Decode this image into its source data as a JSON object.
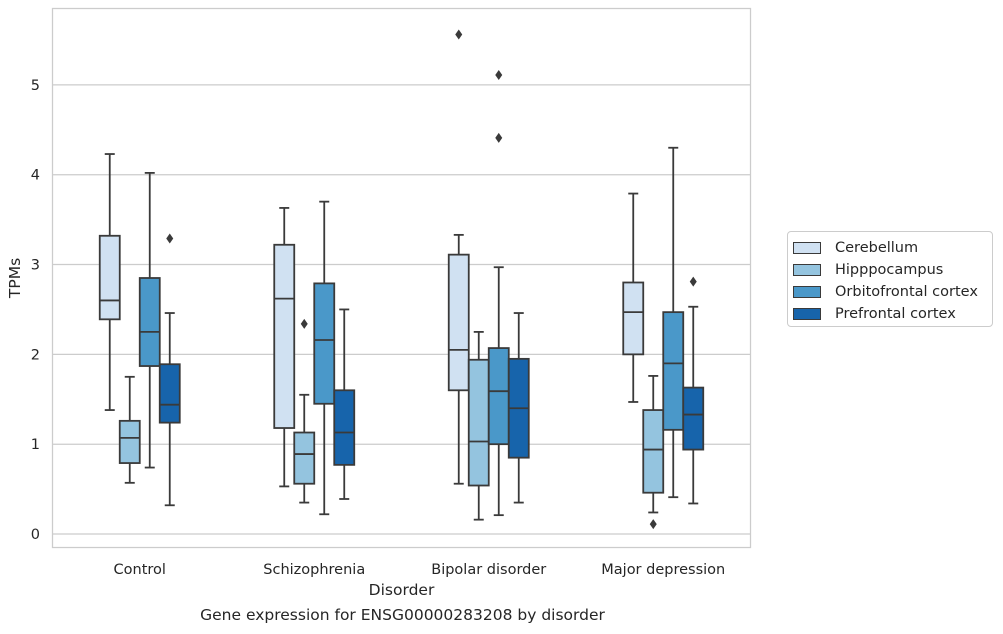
{
  "chart_data": {
    "type": "box",
    "title": "",
    "xlabel": "Disorder",
    "ylabel": "TPMs",
    "caption": "Gene expression for ENSG00000283208 by disorder",
    "categories": [
      "Control",
      "Schizophrenia",
      "Bipolar disorder",
      "Major depression"
    ],
    "ylim": [
      -0.15,
      5.85
    ],
    "yticks": [
      0,
      1,
      2,
      3,
      4,
      5
    ],
    "grid": "horizontal",
    "legend_position": "right",
    "series": [
      {
        "name": "Cerebellum",
        "color": "#d0e1f2",
        "boxes": [
          {
            "whisker_low": 1.38,
            "q1": 2.39,
            "median": 2.6,
            "q3": 3.32,
            "whisker_high": 4.23,
            "outliers": []
          },
          {
            "whisker_low": 0.53,
            "q1": 1.18,
            "median": 2.62,
            "q3": 3.22,
            "whisker_high": 3.63,
            "outliers": []
          },
          {
            "whisker_low": 0.56,
            "q1": 1.6,
            "median": 2.05,
            "q3": 3.11,
            "whisker_high": 3.33,
            "outliers": [
              5.56
            ]
          },
          {
            "whisker_low": 1.47,
            "q1": 2.0,
            "median": 2.47,
            "q3": 2.8,
            "whisker_high": 3.79,
            "outliers": []
          }
        ]
      },
      {
        "name": "Hipppocampus",
        "color": "#94c4df",
        "boxes": [
          {
            "whisker_low": 0.57,
            "q1": 0.79,
            "median": 1.07,
            "q3": 1.26,
            "whisker_high": 1.75,
            "outliers": []
          },
          {
            "whisker_low": 0.35,
            "q1": 0.56,
            "median": 0.89,
            "q3": 1.13,
            "whisker_high": 1.55,
            "outliers": [
              2.34
            ]
          },
          {
            "whisker_low": 0.16,
            "q1": 0.54,
            "median": 1.03,
            "q3": 1.94,
            "whisker_high": 2.25,
            "outliers": []
          },
          {
            "whisker_low": 0.24,
            "q1": 0.46,
            "median": 0.94,
            "q3": 1.38,
            "whisker_high": 1.76,
            "outliers": [
              0.11
            ]
          }
        ]
      },
      {
        "name": "Orbitofrontal cortex",
        "color": "#4a98c9",
        "boxes": [
          {
            "whisker_low": 0.74,
            "q1": 1.87,
            "median": 2.25,
            "q3": 2.85,
            "whisker_high": 4.02,
            "outliers": []
          },
          {
            "whisker_low": 0.22,
            "q1": 1.45,
            "median": 2.16,
            "q3": 2.79,
            "whisker_high": 3.7,
            "outliers": []
          },
          {
            "whisker_low": 0.21,
            "q1": 1.0,
            "median": 1.59,
            "q3": 2.07,
            "whisker_high": 2.97,
            "outliers": [
              4.41,
              5.11
            ]
          },
          {
            "whisker_low": 0.41,
            "q1": 1.16,
            "median": 1.9,
            "q3": 2.47,
            "whisker_high": 4.3,
            "outliers": []
          }
        ]
      },
      {
        "name": "Prefrontal cortex",
        "color": "#1764ab",
        "boxes": [
          {
            "whisker_low": 0.32,
            "q1": 1.24,
            "median": 1.44,
            "q3": 1.89,
            "whisker_high": 2.46,
            "outliers": [
              3.29
            ]
          },
          {
            "whisker_low": 0.39,
            "q1": 0.77,
            "median": 1.13,
            "q3": 1.6,
            "whisker_high": 2.5,
            "outliers": []
          },
          {
            "whisker_low": 0.35,
            "q1": 0.85,
            "median": 1.4,
            "q3": 1.95,
            "whisker_high": 2.46,
            "outliers": []
          },
          {
            "whisker_low": 0.34,
            "q1": 0.94,
            "median": 1.33,
            "q3": 1.63,
            "whisker_high": 2.53,
            "outliers": [
              2.81
            ]
          }
        ]
      }
    ]
  }
}
